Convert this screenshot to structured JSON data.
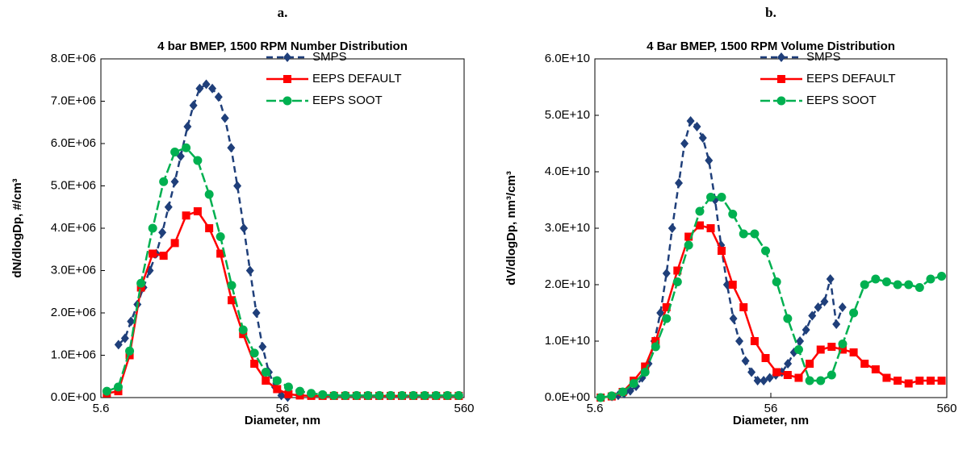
{
  "chart_data": [
    {
      "type": "line",
      "panel_label": "a.",
      "title": "4 bar BMEP, 1500 RPM Number Distribution",
      "x_label": "Diameter, nm",
      "y_label": "dN/dlogDp, #/cm³",
      "xlog": true,
      "xlim": [
        5.6,
        560
      ],
      "xticks": [
        5.6,
        56,
        560
      ],
      "ylim": [
        0,
        8000000.0
      ],
      "yticks": [
        {
          "value": 0,
          "label": "0.0E+00"
        },
        {
          "value": 1000000.0,
          "label": "1.0E+06"
        },
        {
          "value": 2000000.0,
          "label": "2.0E+06"
        },
        {
          "value": 3000000.0,
          "label": "3.0E+06"
        },
        {
          "value": 4000000.0,
          "label": "4.0E+06"
        },
        {
          "value": 5000000.0,
          "label": "5.0E+06"
        },
        {
          "value": 6000000.0,
          "label": "6.0E+06"
        },
        {
          "value": 7000000.0,
          "label": "7.0E+06"
        },
        {
          "value": 8000000.0,
          "label": "8.0E+06"
        }
      ],
      "legend": "upper right",
      "series": [
        {
          "name": "SMPS",
          "color": "#1f3f7a",
          "marker": "diamond",
          "dash": "8 5",
          "x": [
            7.0,
            7.6,
            8.2,
            8.9,
            9.6,
            10.4,
            11.3,
            12.2,
            13.2,
            14.3,
            15.4,
            16.8,
            18.1,
            19.6,
            21.3,
            23.0,
            24.9,
            27.0,
            29.2,
            31.6,
            34.3,
            37.1,
            40.2,
            43.5,
            47.1,
            51.0,
            55.2,
            59.8
          ],
          "values": [
            1250000.0,
            1400000.0,
            1800000.0,
            2200000.0,
            2600000.0,
            3000000.0,
            3400000.0,
            3900000.0,
            4500000.0,
            5100000.0,
            5700000.0,
            6400000.0,
            6900000.0,
            7300000.0,
            7400000.0,
            7300000.0,
            7100000.0,
            6600000.0,
            5900000.0,
            5000000.0,
            4000000.0,
            3000000.0,
            2000000.0,
            1200000.0,
            600000.0,
            250000.0,
            50000.0,
            10000.0
          ]
        },
        {
          "name": "EEPS DEFAULT",
          "color": "#ff0000",
          "marker": "square",
          "dash": "none",
          "x": [
            6.04,
            6.98,
            8.06,
            9.31,
            10.8,
            12.4,
            14.3,
            16.5,
            19.1,
            22.1,
            25.5,
            29.4,
            34.0,
            39.2,
            45.3,
            52.3,
            60.4,
            69.8,
            80.6,
            93.1,
            107.5,
            124.1,
            143.3,
            165.5,
            191.1,
            220.7,
            254.8,
            294.3,
            339.8,
            392.4,
            453.2,
            523.3
          ],
          "values": [
            100000.0,
            150000.0,
            1000000.0,
            2600000.0,
            3400000.0,
            3350000.0,
            3650000.0,
            4300000.0,
            4400000.0,
            4000000.0,
            3400000.0,
            2300000.0,
            1500000.0,
            800000.0,
            400000.0,
            200000.0,
            80000.0,
            50000.0,
            40000.0,
            40000.0,
            40000.0,
            40000.0,
            40000.0,
            40000.0,
            40000.0,
            40000.0,
            40000.0,
            40000.0,
            40000.0,
            40000.0,
            40000.0,
            40000.0
          ]
        },
        {
          "name": "EEPS SOOT",
          "color": "#00b050",
          "marker": "circle",
          "dash": "12 4",
          "x": [
            6.04,
            6.98,
            8.06,
            9.31,
            10.8,
            12.4,
            14.3,
            16.5,
            19.1,
            22.1,
            25.5,
            29.4,
            34.0,
            39.2,
            45.3,
            52.3,
            60.4,
            69.8,
            80.6,
            93.1,
            107.5,
            124.1,
            143.3,
            165.5,
            191.1,
            220.7,
            254.8,
            294.3,
            339.8,
            392.4,
            453.2,
            523.3
          ],
          "values": [
            150000.0,
            250000.0,
            1100000.0,
            2700000.0,
            4000000.0,
            5100000.0,
            5800000.0,
            5900000.0,
            5600000.0,
            4800000.0,
            3800000.0,
            2650000.0,
            1600000.0,
            1050000.0,
            600000.0,
            400000.0,
            250000.0,
            150000.0,
            100000.0,
            70000.0,
            50000.0,
            50000.0,
            50000.0,
            50000.0,
            50000.0,
            50000.0,
            50000.0,
            50000.0,
            50000.0,
            50000.0,
            50000.0,
            50000.0
          ]
        }
      ]
    },
    {
      "type": "line",
      "panel_label": "b.",
      "title": "4 Bar BMEP, 1500 RPM Volume Distribution",
      "x_label": "Diameter, nm",
      "y_label": "dV/dlogDp, nm³/cm³",
      "xlog": true,
      "xlim": [
        5.6,
        560
      ],
      "xticks": [
        5.6,
        56,
        560
      ],
      "ylim": [
        0,
        60000000000.0
      ],
      "yticks": [
        {
          "value": 0,
          "label": "0.0E+00"
        },
        {
          "value": 10000000000.0,
          "label": "1.0E+10"
        },
        {
          "value": 20000000000.0,
          "label": "2.0E+10"
        },
        {
          "value": 30000000000.0,
          "label": "3.0E+10"
        },
        {
          "value": 40000000000.0,
          "label": "4.0E+10"
        },
        {
          "value": 50000000000.0,
          "label": "5.0E+10"
        },
        {
          "value": 60000000000.0,
          "label": "6.0E+10"
        }
      ],
      "legend": "upper right",
      "series": [
        {
          "name": "SMPS",
          "color": "#1f3f7a",
          "marker": "diamond",
          "dash": "8 5",
          "x": [
            7.0,
            7.6,
            8.2,
            8.9,
            9.6,
            10.4,
            11.3,
            12.2,
            13.2,
            14.3,
            15.4,
            16.8,
            18.1,
            19.6,
            21.3,
            23.0,
            24.9,
            27.0,
            29.2,
            31.6,
            34.3,
            37.1,
            40.2,
            43.5,
            47.1,
            51.0,
            55.2,
            59.8,
            64.7,
            70.0,
            75.8,
            82.0,
            88.8,
            96.2,
            104,
            113,
            122,
            132,
            143
          ],
          "values": [
            200000000.0,
            400000000.0,
            700000000.0,
            1200000000.0,
            2000000000.0,
            3500000000.0,
            6000000000.0,
            10000000000.0,
            15000000000.0,
            22000000000.0,
            30000000000.0,
            38000000000.0,
            45000000000.0,
            49000000000.0,
            48000000000.0,
            46000000000.0,
            42000000000.0,
            35000000000.0,
            27000000000.0,
            20000000000.0,
            14000000000.0,
            10000000000.0,
            6500000000.0,
            4500000000.0,
            3000000000.0,
            3000000000.0,
            3500000000.0,
            4000000000.0,
            4500000000.0,
            6000000000.0,
            8000000000.0,
            10000000000.0,
            12000000000.0,
            14500000000.0,
            16000000000.0,
            17000000000.0,
            21000000000.0,
            13000000000.0,
            16000000000.0
          ]
        },
        {
          "name": "EEPS DEFAULT",
          "color": "#ff0000",
          "marker": "square",
          "dash": "none",
          "x": [
            6.04,
            6.98,
            8.06,
            9.31,
            10.8,
            12.4,
            14.3,
            16.5,
            19.1,
            22.1,
            25.5,
            29.4,
            34.0,
            39.2,
            45.3,
            52.3,
            60.4,
            69.8,
            80.6,
            93.1,
            107.5,
            124.1,
            143.3,
            165.5,
            191.1,
            220.7,
            254.8,
            294.3,
            339.8,
            392.4,
            453.2,
            523.3
          ],
          "values": [
            0,
            200000000.0,
            1000000000.0,
            3000000000.0,
            5500000000.0,
            10000000000.0,
            16000000000.0,
            22500000000.0,
            28500000000.0,
            30500000000.0,
            30000000000.0,
            26000000000.0,
            20000000000.0,
            16000000000.0,
            10000000000.0,
            7000000000.0,
            4500000000.0,
            4000000000.0,
            3500000000.0,
            6000000000.0,
            8500000000.0,
            9000000000.0,
            8500000000.0,
            8000000000.0,
            6000000000.0,
            5000000000.0,
            3500000000.0,
            3000000000.0,
            2500000000.0,
            3000000000.0,
            3000000000.0,
            3000000000.0
          ]
        },
        {
          "name": "EEPS SOOT",
          "color": "#00b050",
          "marker": "circle",
          "dash": "12 4",
          "x": [
            6.04,
            6.98,
            8.06,
            9.31,
            10.8,
            12.4,
            14.3,
            16.5,
            19.1,
            22.1,
            25.5,
            29.4,
            34.0,
            39.2,
            45.3,
            52.3,
            60.4,
            69.8,
            80.6,
            93.1,
            107.5,
            124.1,
            143.3,
            165.5,
            191.1,
            220.7,
            254.8,
            294.3,
            339.8,
            392.4,
            453.2,
            523.3
          ],
          "values": [
            0,
            300000000.0,
            1000000000.0,
            2500000000.0,
            4500000000.0,
            9000000000.0,
            14000000000.0,
            20500000000.0,
            27000000000.0,
            33000000000.0,
            35500000000.0,
            35500000000.0,
            32500000000.0,
            29000000000.0,
            29000000000.0,
            26000000000.0,
            20500000000.0,
            14000000000.0,
            8500000000.0,
            3000000000.0,
            3000000000.0,
            4000000000.0,
            9500000000.0,
            15000000000.0,
            20000000000.0,
            21000000000.0,
            20500000000.0,
            20000000000.0,
            20000000000.0,
            19500000000.0,
            21000000000.0,
            21500000000.0
          ]
        }
      ]
    }
  ]
}
